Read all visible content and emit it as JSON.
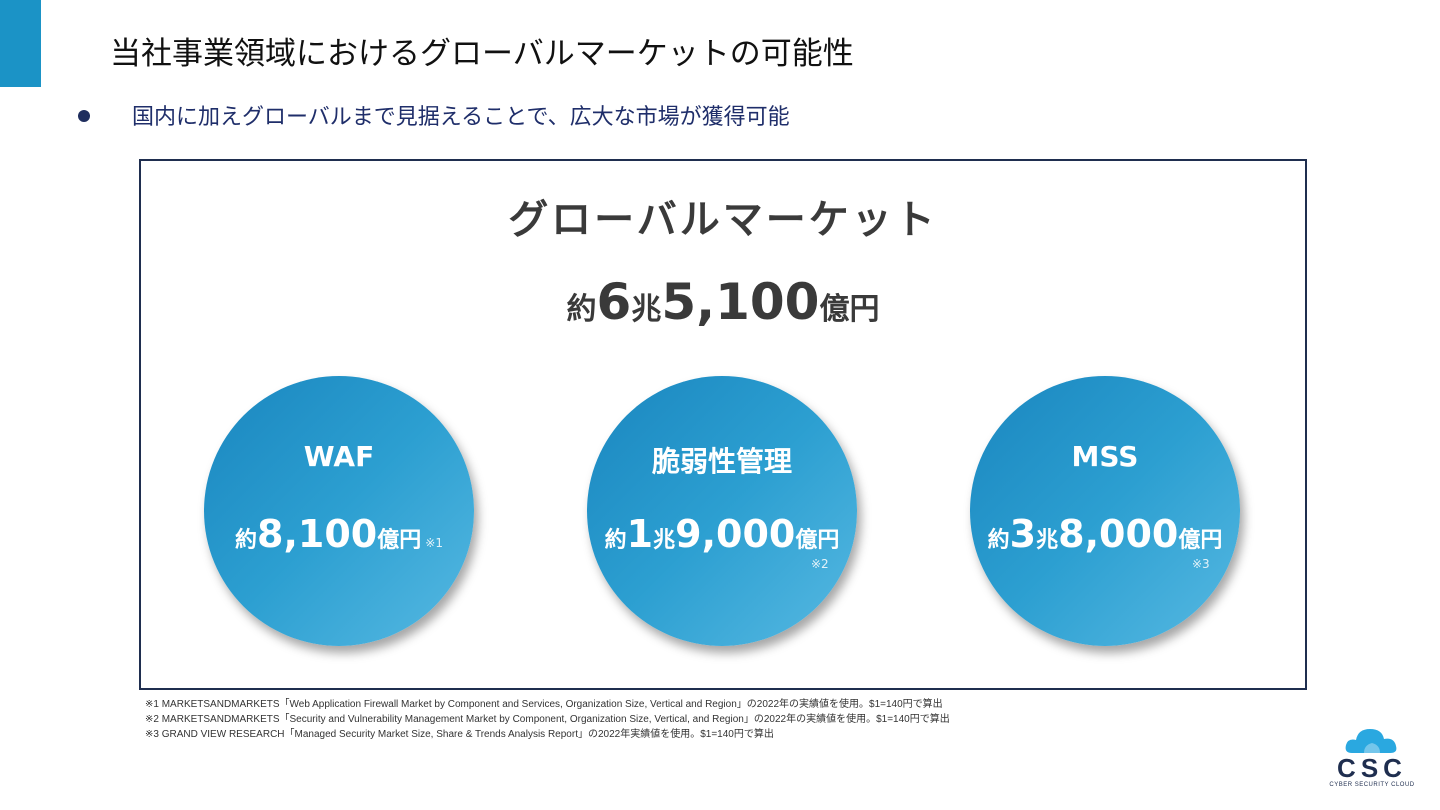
{
  "page": {
    "title": "当社事業領域におけるグローバルマーケットの可能性",
    "bullet": "国内に加えグローバルまで見据えることで、広大な市場が獲得可能"
  },
  "market": {
    "heading": "グローバルマーケット",
    "total_prefix": "約",
    "total_trillion": "6",
    "total_trillion_unit": "兆",
    "total_billion": "5,100",
    "total_unit": "億円"
  },
  "segments": [
    {
      "label": "WAF",
      "prefix": "約",
      "trillion": "",
      "trillion_unit": "",
      "amount": "8,100",
      "unit": "億円",
      "note": "※1"
    },
    {
      "label": "脆弱性管理",
      "prefix": "約",
      "trillion": "1",
      "trillion_unit": "兆",
      "amount": "9,000",
      "unit": "億円",
      "note": "※2"
    },
    {
      "label": "MSS",
      "prefix": "約",
      "trillion": "3",
      "trillion_unit": "兆",
      "amount": "8,000",
      "unit": "億円",
      "note": "※3"
    }
  ],
  "footnotes": [
    "※1 MARKETSANDMARKETS「Web Application Firewall Market by Component and Services, Organization Size, Vertical and Region」の2022年の実績値を使用。$1=140円で算出",
    "※2 MARKETSANDMARKETS「Security and Vulnerability Management Market by Component, Organization Size, Vertical, and Region」の2022年の実績値を使用。$1=140円で算出",
    "※3 GRAND VIEW RESEARCH「Managed Security Market Size, Share & Trends Analysis Report」の2022年実績値を使用。$1=140円で算出"
  ],
  "logo": {
    "text": "CSC",
    "subtext": "CYBER SECURITY CLOUD",
    "icon": "cloud-icon"
  },
  "colors": {
    "accent": "#1b93c6",
    "navy": "#1f2e4f",
    "circle_dark": "#1a86bf",
    "circle_light": "#57b9e2"
  }
}
